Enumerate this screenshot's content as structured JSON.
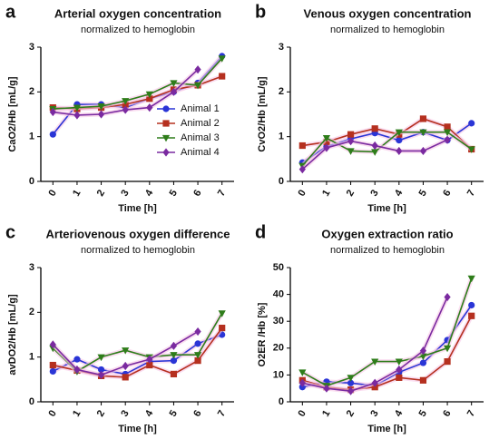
{
  "chart_data": [
    {
      "type": "line",
      "panel": "a",
      "title": "Arterial oxygen concentration",
      "subtitle": "normalized to hemoglobin",
      "xlabel": "Time [h]",
      "ylabel": "CaO2/Hb [mL/g]",
      "categories": [
        "0",
        "1",
        "2",
        "3",
        "4",
        "5",
        "6",
        "7"
      ],
      "ylim": [
        0,
        3
      ],
      "yticks": [
        0,
        1,
        2,
        3
      ],
      "legend": "lower right",
      "series": [
        {
          "name": "Animal 1",
          "color": "#2a35d6",
          "marker": "circle",
          "values": [
            1.05,
            1.72,
            1.72,
            1.65,
            1.85,
            2.0,
            2.2,
            2.8
          ]
        },
        {
          "name": "Animal 2",
          "color": "#b5301f",
          "marker": "square",
          "values": [
            1.65,
            1.62,
            1.65,
            1.72,
            1.85,
            2.05,
            2.15,
            2.35
          ]
        },
        {
          "name": "Animal 3",
          "color": "#2e7d1a",
          "marker": "triangle-down",
          "values": [
            1.62,
            1.65,
            1.68,
            1.8,
            1.95,
            2.2,
            2.15,
            2.75
          ]
        },
        {
          "name": "Animal 4",
          "color": "#7a2aa0",
          "marker": "diamond",
          "values": [
            1.55,
            1.48,
            1.5,
            1.6,
            1.65,
            2.0,
            2.5,
            null
          ]
        }
      ]
    },
    {
      "type": "line",
      "panel": "b",
      "title": "Venous oxygen concentration",
      "subtitle": "normalized to hemoglobin",
      "xlabel": "Time [h]",
      "ylabel": "CvO2/Hb [mL/g]",
      "categories": [
        "0",
        "1",
        "2",
        "3",
        "4",
        "5",
        "6",
        "7"
      ],
      "ylim": [
        0,
        3
      ],
      "yticks": [
        0,
        1,
        2,
        3
      ],
      "series": [
        {
          "color": "#2a35d6",
          "marker": "circle",
          "values": [
            0.42,
            0.78,
            0.95,
            1.08,
            0.92,
            1.1,
            0.92,
            1.3
          ]
        },
        {
          "color": "#b5301f",
          "marker": "square",
          "values": [
            0.8,
            0.88,
            1.05,
            1.18,
            1.05,
            1.4,
            1.22,
            0.72
          ]
        },
        {
          "color": "#2e7d1a",
          "marker": "triangle-down",
          "values": [
            0.35,
            0.97,
            0.68,
            0.66,
            1.1,
            1.1,
            1.1,
            0.72
          ]
        },
        {
          "color": "#7a2aa0",
          "marker": "diamond",
          "values": [
            0.27,
            0.75,
            0.9,
            0.8,
            0.68,
            0.68,
            0.93,
            null
          ]
        }
      ]
    },
    {
      "type": "line",
      "panel": "c",
      "title": "Arteriovenous oxygen difference",
      "subtitle": "normalized to hemoglobin",
      "xlabel": "Time [h]",
      "ylabel": "avDO2/Hb [mL/g]",
      "categories": [
        "0",
        "1",
        "2",
        "3",
        "4",
        "5",
        "6",
        "7"
      ],
      "ylim": [
        0,
        3
      ],
      "yticks": [
        0,
        1,
        2,
        3
      ],
      "series": [
        {
          "color": "#2a35d6",
          "marker": "circle",
          "values": [
            0.68,
            0.95,
            0.72,
            0.62,
            0.9,
            0.92,
            1.3,
            1.5
          ]
        },
        {
          "color": "#b5301f",
          "marker": "square",
          "values": [
            0.82,
            0.7,
            0.58,
            0.55,
            0.82,
            0.62,
            0.92,
            1.65
          ]
        },
        {
          "color": "#2e7d1a",
          "marker": "triangle-down",
          "values": [
            1.2,
            0.68,
            1.0,
            1.15,
            1.0,
            1.05,
            1.05,
            1.98
          ]
        },
        {
          "color": "#7a2aa0",
          "marker": "diamond",
          "values": [
            1.28,
            0.72,
            0.6,
            0.8,
            0.95,
            1.25,
            1.57,
            null
          ]
        }
      ]
    },
    {
      "type": "line",
      "panel": "d",
      "title": "Oxygen extraction ratio",
      "subtitle": "normalized to hemoglobin",
      "xlabel": "Time [h]",
      "ylabel": "O2ER /Hb [%]",
      "categories": [
        "0",
        "1",
        "2",
        "3",
        "4",
        "5",
        "6",
        "7"
      ],
      "ylim": [
        0,
        50
      ],
      "yticks": [
        0,
        10,
        20,
        30,
        40,
        50
      ],
      "series": [
        {
          "color": "#2a35d6",
          "marker": "circle",
          "values": [
            5.5,
            7.5,
            7.0,
            6.0,
            11,
            14.5,
            23,
            36
          ]
        },
        {
          "color": "#b5301f",
          "marker": "square",
          "values": [
            8,
            5.5,
            4.5,
            5.5,
            9,
            8,
            15,
            32
          ]
        },
        {
          "color": "#2e7d1a",
          "marker": "triangle-down",
          "values": [
            11,
            6,
            9,
            15,
            15,
            17,
            20,
            46
          ]
        },
        {
          "color": "#7a2aa0",
          "marker": "diamond",
          "values": [
            7,
            5,
            4,
            7,
            12,
            19,
            39,
            null
          ]
        }
      ]
    }
  ]
}
